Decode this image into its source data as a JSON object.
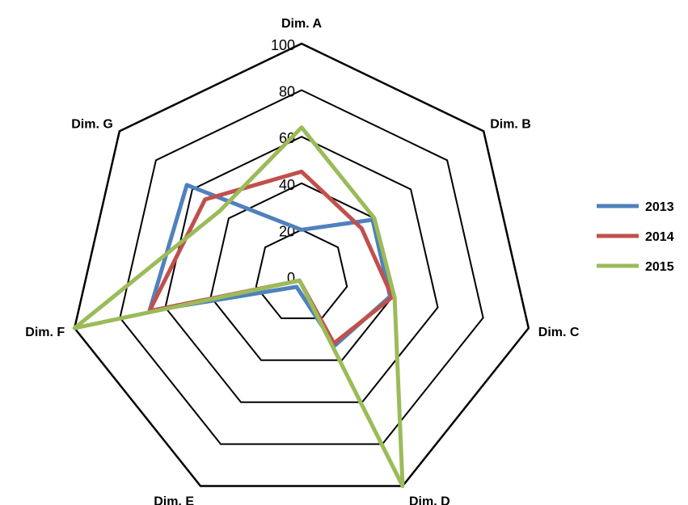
{
  "chart_data": {
    "type": "radar",
    "axes": [
      "Dim. A",
      "Dim. B",
      "Dim. C",
      "Dim. D",
      "Dim. E",
      "Dim. F",
      "Dim. G"
    ],
    "r_ticks": [
      "0",
      "20",
      "40",
      "60",
      "80",
      "100"
    ],
    "r_range": [
      0,
      100
    ],
    "grid": true,
    "legend_position": "right",
    "series": [
      {
        "name": "2013",
        "color": "#4F81BD",
        "values": [
          20,
          39,
          39,
          33,
          5,
          67,
          63
        ]
      },
      {
        "name": "2014",
        "color": "#C0504D",
        "values": [
          45,
          33,
          40,
          32,
          2,
          67,
          53
        ]
      },
      {
        "name": "2015",
        "color": "#9BBB59",
        "values": [
          64,
          40,
          41,
          100,
          2,
          100,
          45
        ]
      }
    ]
  }
}
